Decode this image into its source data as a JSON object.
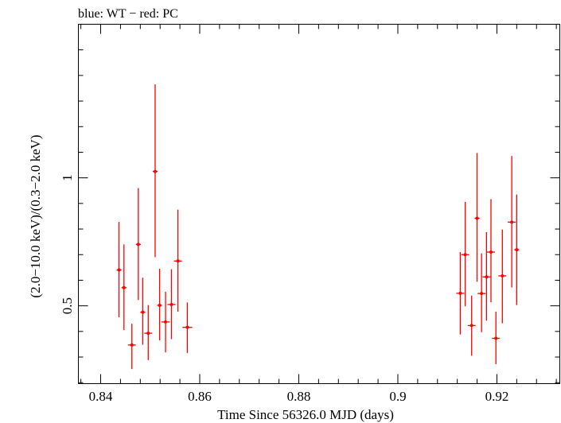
{
  "chart_data": {
    "type": "scatter",
    "title": "blue: WT − red: PC",
    "xlabel": "Time Since 56326.0 MJD (days)",
    "ylabel": "(2.0−10.0 keV)/(0.3−2.0 keV)",
    "xlim": [
      0.8355,
      0.9327
    ],
    "ylim": [
      0.196,
      1.6
    ],
    "xticks": [
      0.84,
      0.86,
      0.88,
      0.9,
      0.92
    ],
    "xtick_labels": [
      "0.84",
      "0.86",
      "0.88",
      "0.9",
      "0.92"
    ],
    "yticks": [
      0.5,
      1
    ],
    "ytick_labels": [
      "0.5",
      "1"
    ],
    "grid": false,
    "series": [
      {
        "name": "PC",
        "color": "#ff0000",
        "points": [
          {
            "x": 0.8437,
            "y": 0.64,
            "xerr": 0.0005,
            "ylo": 0.455,
            "yhi": 0.828
          },
          {
            "x": 0.8447,
            "y": 0.571,
            "xerr": 0.0005,
            "ylo": 0.405,
            "yhi": 0.74
          },
          {
            "x": 0.8463,
            "y": 0.347,
            "xerr": 0.0008,
            "ylo": 0.253,
            "yhi": 0.43
          },
          {
            "x": 0.8476,
            "y": 0.74,
            "xerr": 0.0005,
            "ylo": 0.523,
            "yhi": 0.96
          },
          {
            "x": 0.8485,
            "y": 0.475,
            "xerr": 0.0005,
            "ylo": 0.348,
            "yhi": 0.61
          },
          {
            "x": 0.8496,
            "y": 0.393,
            "xerr": 0.0008,
            "ylo": 0.288,
            "yhi": 0.503
          },
          {
            "x": 0.851,
            "y": 1.025,
            "xerr": 0.0005,
            "ylo": 0.69,
            "yhi": 1.365
          },
          {
            "x": 0.8519,
            "y": 0.502,
            "xerr": 0.0005,
            "ylo": 0.365,
            "yhi": 0.645
          },
          {
            "x": 0.8531,
            "y": 0.437,
            "xerr": 0.0008,
            "ylo": 0.318,
            "yhi": 0.555
          },
          {
            "x": 0.8543,
            "y": 0.505,
            "xerr": 0.0008,
            "ylo": 0.37,
            "yhi": 0.643
          },
          {
            "x": 0.8556,
            "y": 0.675,
            "xerr": 0.0008,
            "ylo": 0.477,
            "yhi": 0.876
          },
          {
            "x": 0.8575,
            "y": 0.416,
            "xerr": 0.001,
            "ylo": 0.316,
            "yhi": 0.513
          },
          {
            "x": 0.9126,
            "y": 0.549,
            "xerr": 0.0008,
            "ylo": 0.388,
            "yhi": 0.71
          },
          {
            "x": 0.9136,
            "y": 0.7,
            "xerr": 0.0008,
            "ylo": 0.498,
            "yhi": 0.906
          },
          {
            "x": 0.9149,
            "y": 0.423,
            "xerr": 0.0008,
            "ylo": 0.305,
            "yhi": 0.54
          },
          {
            "x": 0.916,
            "y": 0.842,
            "xerr": 0.0005,
            "ylo": 0.594,
            "yhi": 1.097
          },
          {
            "x": 0.9169,
            "y": 0.548,
            "xerr": 0.0008,
            "ylo": 0.397,
            "yhi": 0.705
          },
          {
            "x": 0.9179,
            "y": 0.613,
            "xerr": 0.0008,
            "ylo": 0.442,
            "yhi": 0.788
          },
          {
            "x": 0.9188,
            "y": 0.71,
            "xerr": 0.0008,
            "ylo": 0.514,
            "yhi": 0.917
          },
          {
            "x": 0.9198,
            "y": 0.373,
            "xerr": 0.0008,
            "ylo": 0.272,
            "yhi": 0.477
          },
          {
            "x": 0.9211,
            "y": 0.617,
            "xerr": 0.0008,
            "ylo": 0.432,
            "yhi": 0.798
          },
          {
            "x": 0.923,
            "y": 0.827,
            "xerr": 0.0008,
            "ylo": 0.572,
            "yhi": 1.085
          },
          {
            "x": 0.924,
            "y": 0.719,
            "xerr": 0.0005,
            "ylo": 0.503,
            "yhi": 0.935
          }
        ]
      }
    ]
  }
}
